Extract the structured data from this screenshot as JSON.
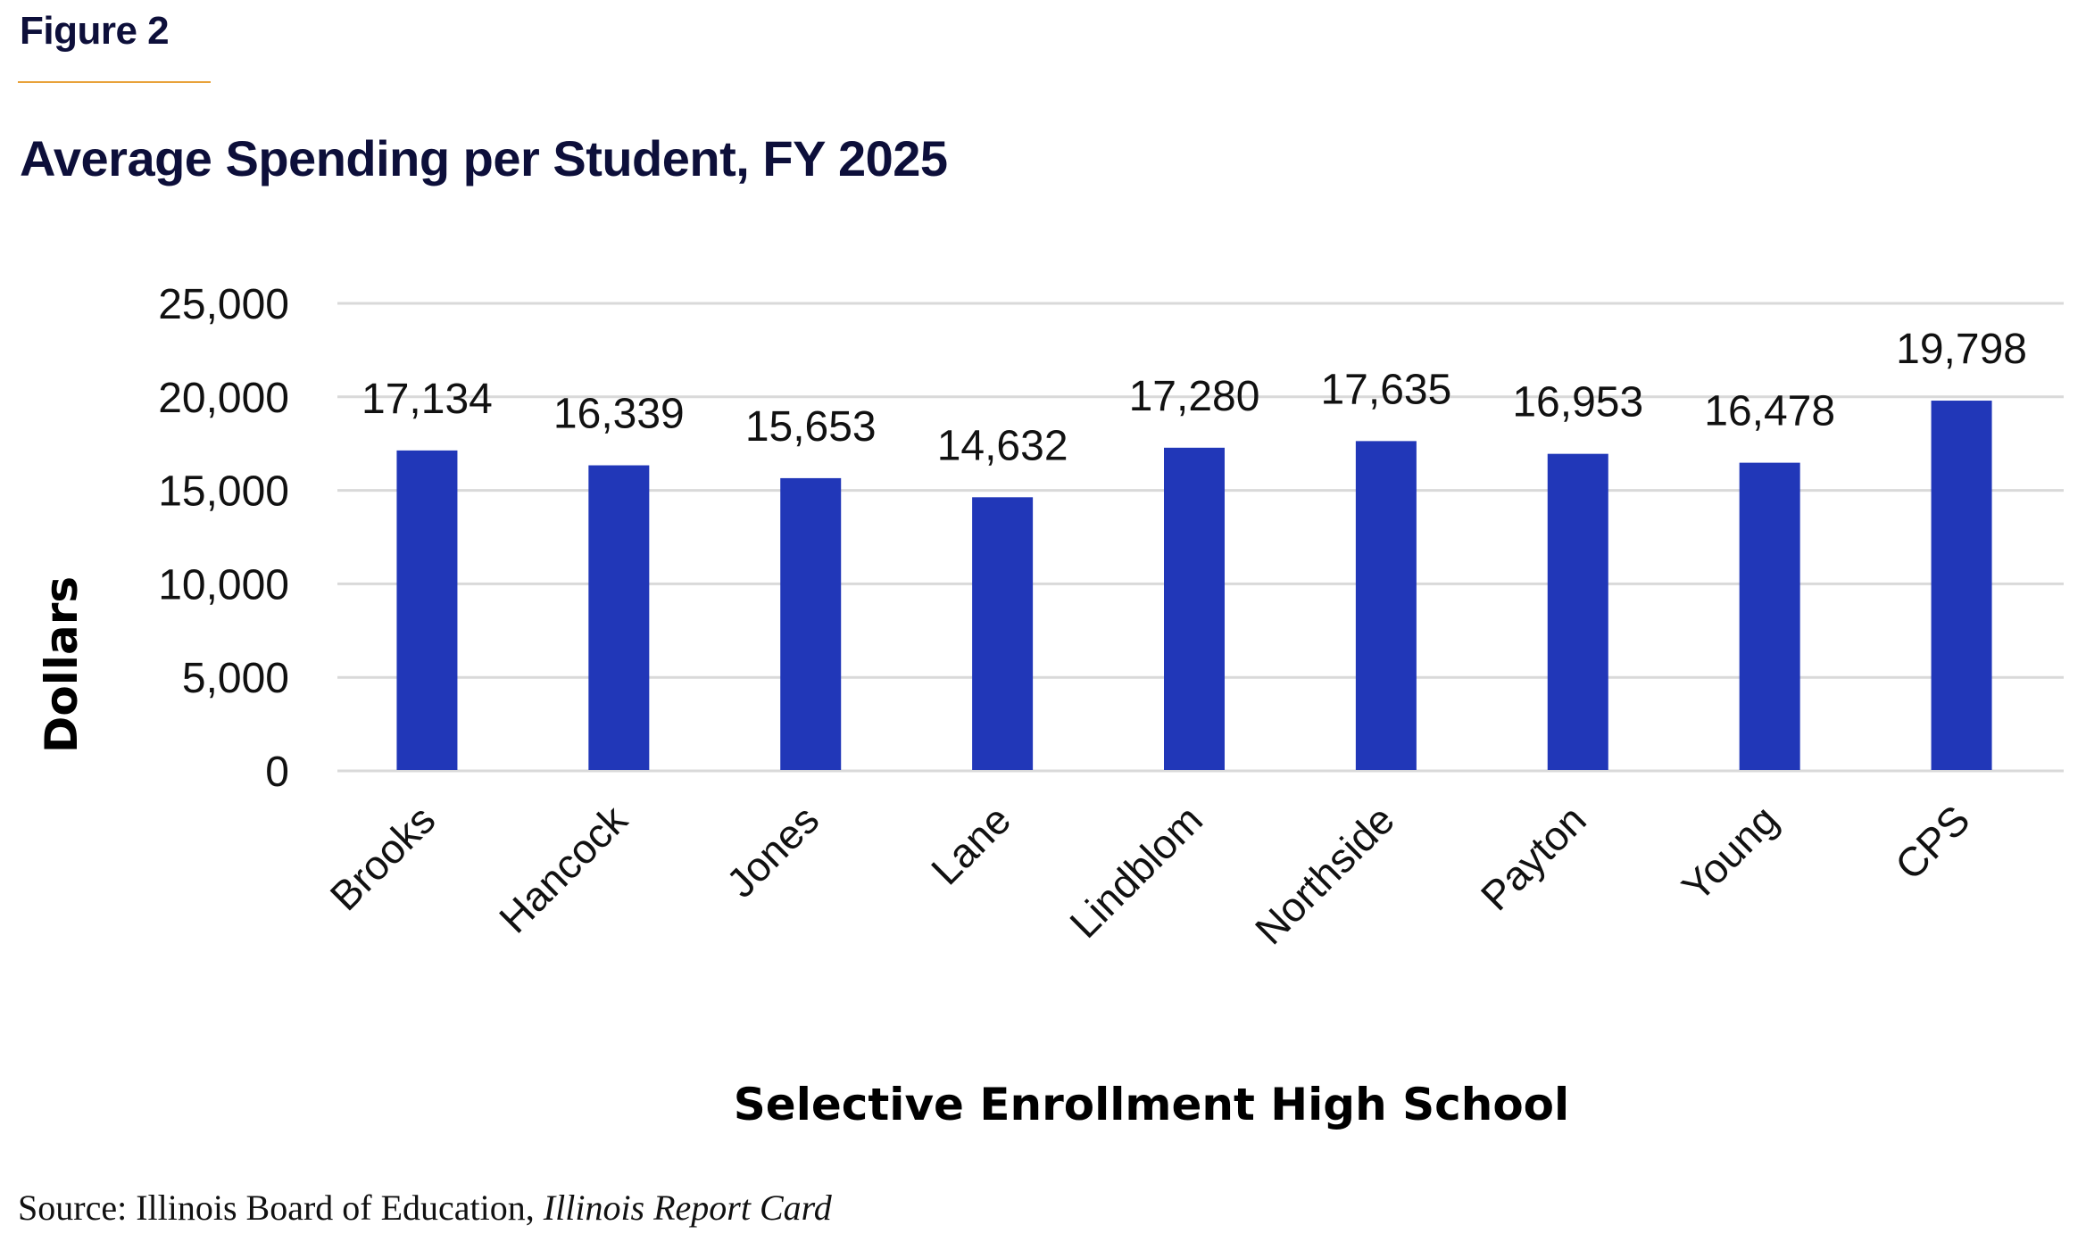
{
  "figure_label": "Figure 2",
  "source": {
    "prefix": "Source: Illinois Board of Education, ",
    "italic": "Illinois Report Card"
  },
  "chart_data": {
    "type": "bar",
    "title": "Average Spending per Student, FY 2025",
    "xlabel": "Selective Enrollment High School",
    "ylabel": "Dollars",
    "categories": [
      "Brooks",
      "Hancock",
      "Jones",
      "Lane",
      "Lindblom",
      "Northside",
      "Payton",
      "Young",
      "CPS"
    ],
    "values": [
      17134,
      16339,
      15653,
      14632,
      17280,
      17635,
      16953,
      16478,
      19798
    ],
    "data_labels": [
      "17,134",
      "16,339",
      "15,653",
      "14,632",
      "17,280",
      "17,635",
      "16,953",
      "16,478",
      "19,798"
    ],
    "ylim": [
      0,
      25000
    ],
    "yticks": [
      0,
      5000,
      10000,
      15000,
      20000,
      25000
    ],
    "ytick_labels": [
      "0",
      "5,000",
      "10,000",
      "15,000",
      "20,000",
      "25,000"
    ],
    "grid": true,
    "legend": "none",
    "colors": {
      "bar": "#2137b8",
      "grid": "#d9d9d9",
      "title": "#0d0f3a",
      "accent_rule": "#e8a23a"
    }
  }
}
